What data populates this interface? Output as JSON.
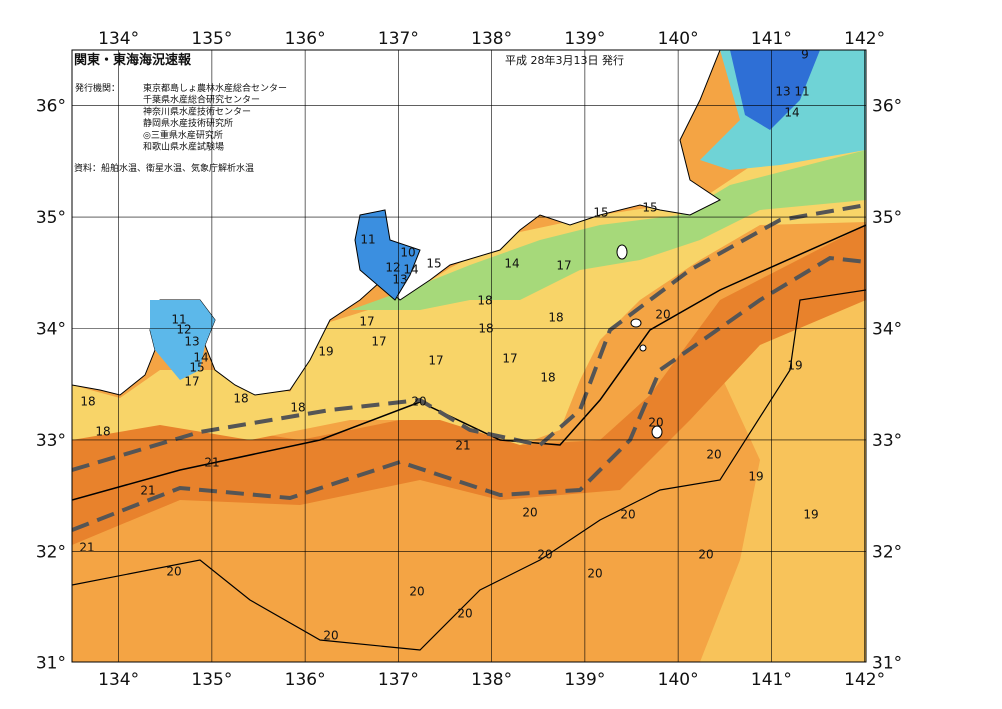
{
  "header": {
    "title": "関東・東海海況速報",
    "date": "平成 28年3月13日 発行"
  },
  "issuers": {
    "label": "発行機関：",
    "list": [
      "東京都島しょ農林水産総合センター",
      "千葉県水産総合研究センター",
      "神奈川県水産技術センター",
      "静岡県水産技術研究所",
      "◎三重県水産研究所",
      "和歌山県水産試験場"
    ]
  },
  "source": "資料：船舶水温、衛星水温、気象庁解析水温",
  "axes": {
    "longitudes": [
      {
        "value": 134,
        "label": "134°"
      },
      {
        "value": 135,
        "label": "135°"
      },
      {
        "value": 136,
        "label": "136°"
      },
      {
        "value": 137,
        "label": "137°"
      },
      {
        "value": 138,
        "label": "138°"
      },
      {
        "value": 139,
        "label": "139°"
      },
      {
        "value": 140,
        "label": "140°"
      },
      {
        "value": 141,
        "label": "141°"
      },
      {
        "value": 142,
        "label": "142°"
      }
    ],
    "latitudes": [
      {
        "value": 31,
        "label": "31°"
      },
      {
        "value": 32,
        "label": "32°"
      },
      {
        "value": 33,
        "label": "33°"
      },
      {
        "value": 34,
        "label": "34°"
      },
      {
        "value": 35,
        "label": "35°"
      },
      {
        "value": 36,
        "label": "36°"
      }
    ]
  },
  "contour_labels": [
    "9",
    "11",
    "13",
    "14",
    "15",
    "15",
    "11",
    "12",
    "10",
    "13",
    "14",
    "15",
    "14",
    "17",
    "18",
    "18",
    "18",
    "17",
    "17",
    "17",
    "17",
    "18",
    "19",
    "20",
    "11",
    "12",
    "13",
    "14",
    "15",
    "17",
    "18",
    "18",
    "18",
    "18",
    "20",
    "21",
    "21",
    "21",
    "21",
    "20",
    "20",
    "20",
    "20",
    "20",
    "20",
    "20",
    "20",
    "20",
    "20",
    "20",
    "19",
    "19",
    "19"
  ]
}
